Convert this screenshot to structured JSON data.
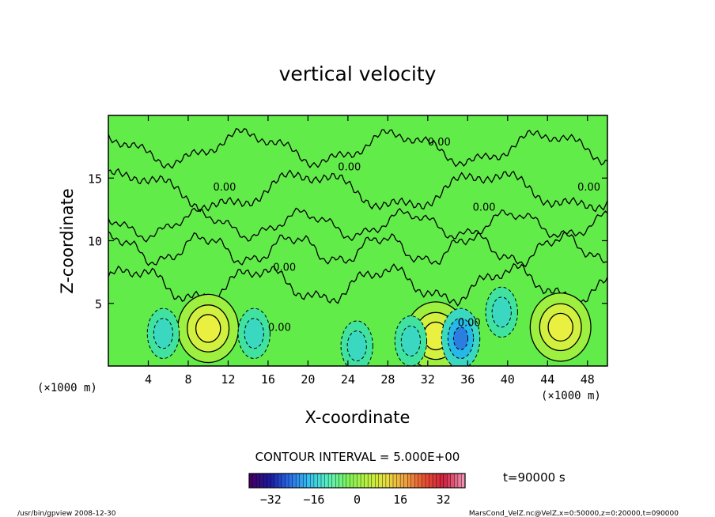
{
  "chart_data": {
    "type": "contour",
    "title": "vertical velocity",
    "xlabel": "X-coordinate",
    "ylabel": "Z-coordinate",
    "x_unit_left": "(×1000 m)",
    "x_unit_right": "(×1000 m)",
    "xlim": [
      0,
      50
    ],
    "ylim": [
      0,
      20
    ],
    "x_ticks": [
      4,
      8,
      12,
      16,
      20,
      24,
      28,
      32,
      36,
      40,
      44,
      48
    ],
    "y_ticks": [
      5,
      10,
      15
    ],
    "contour_interval_label": "CONTOUR INTERVAL = 5.000E+00",
    "contour_labels": [
      "0.00",
      "0.00",
      "0.00",
      "0.00",
      "0.00",
      "0.00",
      "0.00",
      "0.00"
    ],
    "colorbar": {
      "range": [
        -40,
        40
      ],
      "ticks": [
        -32,
        -16,
        0,
        16,
        32
      ],
      "colors": [
        "#440066",
        "#1a1aa0",
        "#2a6ee8",
        "#36c0f0",
        "#58f0c0",
        "#7ef25a",
        "#b8f040",
        "#e8e040",
        "#f0a040",
        "#e85030",
        "#d02040",
        "#f090b0"
      ]
    },
    "background_color": "#62ec4a",
    "updraft_cores": [
      {
        "x": 10,
        "z": 3.0,
        "max": 12
      },
      {
        "x": 32.8,
        "z": 2.4,
        "max": 10
      },
      {
        "x": 45.3,
        "z": 3.1,
        "max": 12
      }
    ],
    "downdraft_cores": [
      {
        "x": 5.5,
        "z": 2.6,
        "min": -7
      },
      {
        "x": 14.6,
        "z": 2.6,
        "min": -6
      },
      {
        "x": 24.9,
        "z": 1.6,
        "min": -7
      },
      {
        "x": 30.3,
        "z": 2.0,
        "min": -6
      },
      {
        "x": 35.3,
        "z": 2.2,
        "min": -18
      },
      {
        "x": 39.4,
        "z": 4.3,
        "min": -6
      }
    ]
  },
  "time_label": "t=90000 s",
  "footer": {
    "left": "/usr/bin/gpview  2008-12-30",
    "right": "MarsCond_VelZ.nc@VelZ,x=0:50000,z=0:20000,t=090000"
  }
}
